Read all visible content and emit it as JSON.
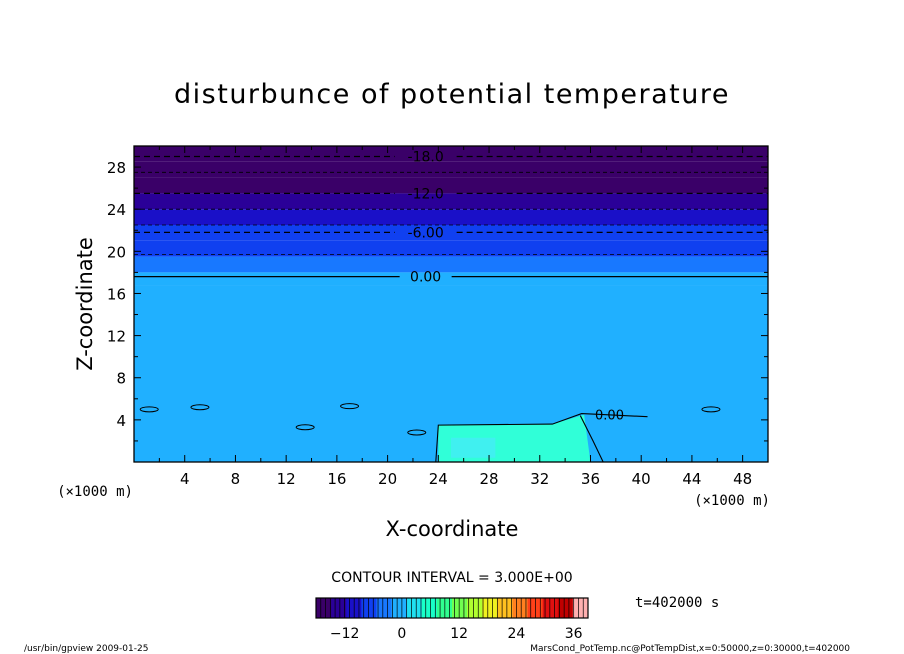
{
  "chart_data": {
    "type": "heatmap",
    "title": "disturbunce of potential temperature",
    "xlabel": "X-coordinate",
    "ylabel": "Z-coordinate",
    "x_unit": "(×1000 m)",
    "x_unit_right": "(×1000 m)",
    "xlim": [
      0,
      50
    ],
    "ylim": [
      0,
      30
    ],
    "x_ticks": [
      4,
      8,
      12,
      16,
      20,
      24,
      28,
      32,
      36,
      40,
      44,
      48
    ],
    "y_ticks": [
      4,
      8,
      12,
      16,
      20,
      24,
      28
    ],
    "contour_interval_text": "CONTOUR INTERVAL = 3.000E+00",
    "time_text": "t=402000 s",
    "colorbar": {
      "min": -18,
      "max": 39,
      "ticks": [
        -12,
        0,
        12,
        24,
        36
      ],
      "colors": [
        "#3a0068",
        "#2a0098",
        "#1a10c8",
        "#1040f0",
        "#1878ff",
        "#20b0ff",
        "#20e0f0",
        "#18ffc8",
        "#30ff90",
        "#70ff50",
        "#b0ff30",
        "#f0f020",
        "#ffc020",
        "#ff8020",
        "#ff4018",
        "#e01010",
        "#c00000",
        "#ffb0b0"
      ]
    },
    "layers": [
      {
        "z0": 28.5,
        "z1": 30,
        "value": -18
      },
      {
        "z0": 27.0,
        "z1": 28.5,
        "value": -16.5
      },
      {
        "z0": 25.5,
        "z1": 27.0,
        "value": -15
      },
      {
        "z0": 24.0,
        "z1": 25.5,
        "value": -13.5
      },
      {
        "z0": 22.5,
        "z1": 24.0,
        "value": -11
      },
      {
        "z0": 21.0,
        "z1": 22.5,
        "value": -8
      },
      {
        "z0": 19.5,
        "z1": 21.0,
        "value": -5.5
      },
      {
        "z0": 18.0,
        "z1": 19.5,
        "value": -3.5
      },
      {
        "z0": 16.8,
        "z1": 18.0,
        "value": -1.5
      },
      {
        "z0": 0,
        "z1": 16.8,
        "value": 0
      }
    ],
    "contours": [
      {
        "label": "-18.0",
        "z": 29.0,
        "label_x": 23.0,
        "style": "dashed"
      },
      {
        "label": "-12.0",
        "z": 25.5,
        "label_x": 23.0,
        "style": "dashed"
      },
      {
        "label": "-6.00",
        "z": 21.8,
        "label_x": 23.0,
        "style": "dashed"
      },
      {
        "label": "0.00",
        "z": 17.6,
        "label_x": 23.0,
        "style": "solid"
      }
    ],
    "extra_dashed_levels": [
      27.5,
      24.0,
      22.5,
      19.7
    ],
    "cold_pool": {
      "x0": 24,
      "x1": 36,
      "top": 3.5,
      "label": "0.00",
      "label_x": 37.5,
      "label_z": 4.5
    }
  },
  "footer": {
    "left": "/usr/bin/gpview   2009-01-25",
    "right": "MarsCond_PotTemp.nc@PotTempDist,x=0:50000,z=0:30000,t=402000"
  }
}
